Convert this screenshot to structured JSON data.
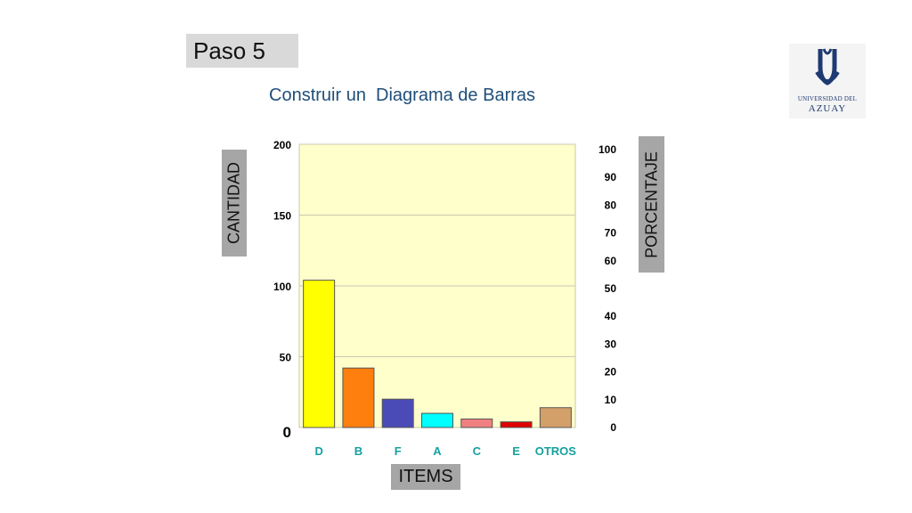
{
  "slide": {
    "step_label": "Paso 5",
    "subtitle": "Construir un  Diagrama de Barras"
  },
  "logo": {
    "line1": "UNIVERSIDAD DEL",
    "line2": "AZUAY",
    "primary_color": "#1e3a72"
  },
  "axes": {
    "left_label": "CANTIDAD",
    "right_label": "PORCENTAJE",
    "bottom_label": "ITEMS"
  },
  "chart_data": {
    "type": "bar",
    "title": "",
    "categories": [
      "D",
      "B",
      "F",
      "A",
      "C",
      "E",
      "OTROS"
    ],
    "values": [
      104,
      42,
      20,
      10,
      6,
      4,
      14
    ],
    "colors": [
      "#ffff00",
      "#ff7f0e",
      "#4b4bb8",
      "#00ffff",
      "#f08080",
      "#e00000",
      "#d4a06a"
    ],
    "ylim": [
      0,
      200
    ],
    "y_ticks": [
      "0",
      "50",
      "100",
      "150",
      "200"
    ],
    "y2lim": [
      0,
      100
    ],
    "y2_ticks": [
      "0",
      "10",
      "20",
      "30",
      "40",
      "50",
      "60",
      "70",
      "80",
      "90",
      "100"
    ],
    "plot_background": "#ffffcc",
    "category_label_color": "#16a0a0",
    "grid": true,
    "legend": "none"
  }
}
